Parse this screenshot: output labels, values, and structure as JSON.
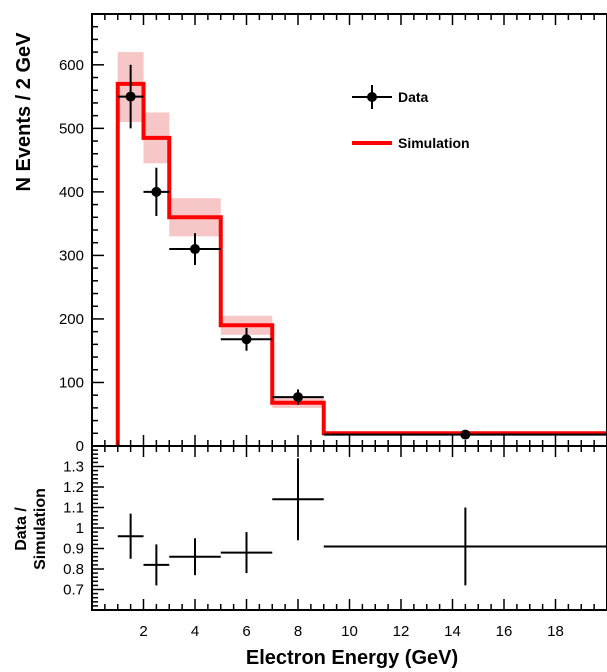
{
  "chart_data": [
    {
      "panel": "main",
      "type": "bar",
      "xlabel": "Electron Energy (GeV)",
      "ylabel": "N Events / 2 GeV",
      "xlim": [
        0,
        20
      ],
      "ylim": [
        0,
        680
      ],
      "x_ticks": [
        2,
        4,
        6,
        8,
        10,
        12,
        14,
        16,
        18
      ],
      "y_ticks": [
        0,
        100,
        200,
        300,
        400,
        500,
        600
      ],
      "legend": {
        "position": "top-right",
        "entries": [
          {
            "label": "Data",
            "style": "points-with-error-bars",
            "color": "#000000"
          },
          {
            "label": "Simulation",
            "style": "line",
            "color": "#ff0000"
          }
        ]
      },
      "series": [
        {
          "name": "Simulation",
          "kind": "step-histogram",
          "color": "#ff0000",
          "band_color": "#f7c6c6",
          "bins": [
            {
              "x_low": 1,
              "x_high": 2,
              "value": 570,
              "band_low": 510,
              "band_high": 620
            },
            {
              "x_low": 2,
              "x_high": 3,
              "value": 485,
              "band_low": 445,
              "band_high": 525
            },
            {
              "x_low": 3,
              "x_high": 5,
              "value": 360,
              "band_low": 330,
              "band_high": 390
            },
            {
              "x_low": 5,
              "x_high": 7,
              "value": 190,
              "band_low": 175,
              "band_high": 205
            },
            {
              "x_low": 7,
              "x_high": 9,
              "value": 68,
              "band_low": 60,
              "band_high": 76
            },
            {
              "x_low": 9,
              "x_high": 20,
              "value": 20,
              "band_low": 17,
              "band_high": 23
            }
          ]
        },
        {
          "name": "Data",
          "kind": "points",
          "color": "#000000",
          "points": [
            {
              "x": 1.5,
              "x_err": 0.5,
              "y": 550,
              "y_err": 50
            },
            {
              "x": 2.5,
              "x_err": 0.5,
              "y": 400,
              "y_err": 38
            },
            {
              "x": 4,
              "x_err": 1,
              "y": 310,
              "y_err": 25
            },
            {
              "x": 6,
              "x_err": 1,
              "y": 168,
              "y_err": 18
            },
            {
              "x": 8,
              "x_err": 1,
              "y": 77,
              "y_err": 12
            },
            {
              "x": 14.5,
              "x_err": 5.5,
              "y": 18,
              "y_err": 4
            }
          ]
        }
      ]
    },
    {
      "panel": "ratio",
      "type": "scatter",
      "ylabel": "Data / Simulation",
      "ylabel_lines": [
        "Data /",
        "Simulation"
      ],
      "xlim": [
        0,
        20
      ],
      "ylim": [
        0.6,
        1.4
      ],
      "y_ticks": [
        0.7,
        0.8,
        0.9,
        1,
        1.1,
        1.2,
        1.3
      ],
      "y_tick_labels": [
        "0.7",
        "0.8",
        "0.9",
        "1",
        "1.1",
        "1.2",
        "1.3"
      ],
      "points": [
        {
          "x": 1.5,
          "x_err": 0.5,
          "y": 0.96,
          "y_err": 0.11
        },
        {
          "x": 2.5,
          "x_err": 0.5,
          "y": 0.82,
          "y_err": 0.1
        },
        {
          "x": 4,
          "x_err": 1,
          "y": 0.86,
          "y_err": 0.09
        },
        {
          "x": 6,
          "x_err": 1,
          "y": 0.88,
          "y_err": 0.1
        },
        {
          "x": 8,
          "x_err": 1,
          "y": 1.14,
          "y_err": 0.2
        },
        {
          "x": 14.5,
          "x_err": 5.5,
          "y": 0.91,
          "y_err": 0.19
        }
      ]
    }
  ]
}
